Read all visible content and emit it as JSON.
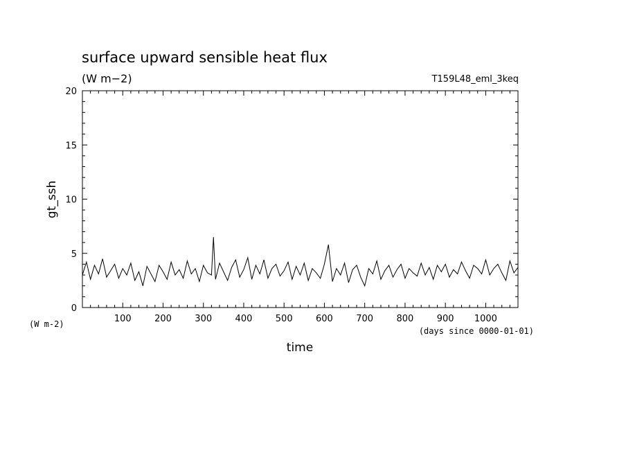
{
  "chart_data": {
    "type": "line",
    "title": "surface upward sensible heat flux",
    "units": "(W m−2)",
    "experiment": "T159L48_eml_3keq",
    "xlabel": "time",
    "x_units": "(days since 0000-01-01)",
    "ylabel": "gt_ssh",
    "y_units": "(W m-2)",
    "xlim": [
      0,
      1080
    ],
    "ylim": [
      0,
      20
    ],
    "x_ticks": [
      "100",
      "200",
      "300",
      "400",
      "500",
      "600",
      "700",
      "800",
      "900",
      "1000"
    ],
    "y_ticks": [
      "0",
      "5",
      "10",
      "15",
      "20"
    ],
    "grid": false,
    "series": [
      {
        "x": [
          0,
          10,
          20,
          30,
          40,
          50,
          60,
          70,
          80,
          90,
          100,
          110,
          120,
          130,
          140,
          150,
          160,
          170,
          180,
          190,
          200,
          210,
          220,
          230,
          240,
          250,
          260,
          270,
          280,
          290,
          300,
          310,
          320,
          325,
          330,
          340,
          350,
          360,
          370,
          380,
          390,
          400,
          410,
          420,
          430,
          440,
          450,
          460,
          470,
          480,
          490,
          500,
          510,
          520,
          530,
          540,
          550,
          560,
          570,
          580,
          590,
          600,
          610,
          620,
          630,
          640,
          650,
          660,
          670,
          680,
          690,
          700,
          710,
          720,
          730,
          740,
          750,
          760,
          770,
          780,
          790,
          800,
          810,
          820,
          830,
          840,
          850,
          860,
          870,
          880,
          890,
          900,
          910,
          920,
          930,
          940,
          950,
          960,
          970,
          980,
          990,
          1000,
          1010,
          1020,
          1030,
          1040,
          1050,
          1060,
          1070,
          1080
        ],
        "values": [
          3.0,
          4.2,
          2.6,
          3.9,
          3.1,
          4.5,
          2.8,
          3.4,
          4.0,
          2.7,
          3.6,
          3.0,
          4.1,
          2.5,
          3.3,
          2.0,
          3.8,
          3.1,
          2.4,
          3.9,
          3.3,
          2.6,
          4.2,
          3.0,
          3.5,
          2.7,
          4.3,
          3.1,
          3.6,
          2.4,
          3.9,
          3.2,
          3.0,
          6.5,
          2.6,
          4.1,
          3.3,
          2.5,
          3.7,
          4.4,
          2.8,
          3.5,
          4.6,
          2.6,
          3.9,
          3.1,
          4.4,
          2.7,
          3.6,
          4.0,
          2.9,
          3.4,
          4.2,
          2.6,
          3.8,
          3.0,
          4.1,
          2.5,
          3.6,
          3.2,
          2.7,
          4.0,
          5.8,
          2.4,
          3.6,
          3.0,
          4.1,
          2.3,
          3.5,
          3.9,
          2.8,
          2.0,
          3.6,
          3.1,
          4.3,
          2.6,
          3.4,
          3.9,
          2.8,
          3.5,
          4.0,
          2.7,
          3.6,
          3.2,
          2.9,
          4.1,
          3.0,
          3.7,
          2.6,
          3.9,
          3.3,
          4.0,
          2.8,
          3.5,
          3.1,
          4.2,
          3.4,
          2.7,
          3.9,
          3.6,
          3.1,
          4.4,
          3.0,
          3.6,
          4.0,
          3.2,
          2.5,
          4.3,
          3.2,
          3.7
        ]
      }
    ]
  }
}
